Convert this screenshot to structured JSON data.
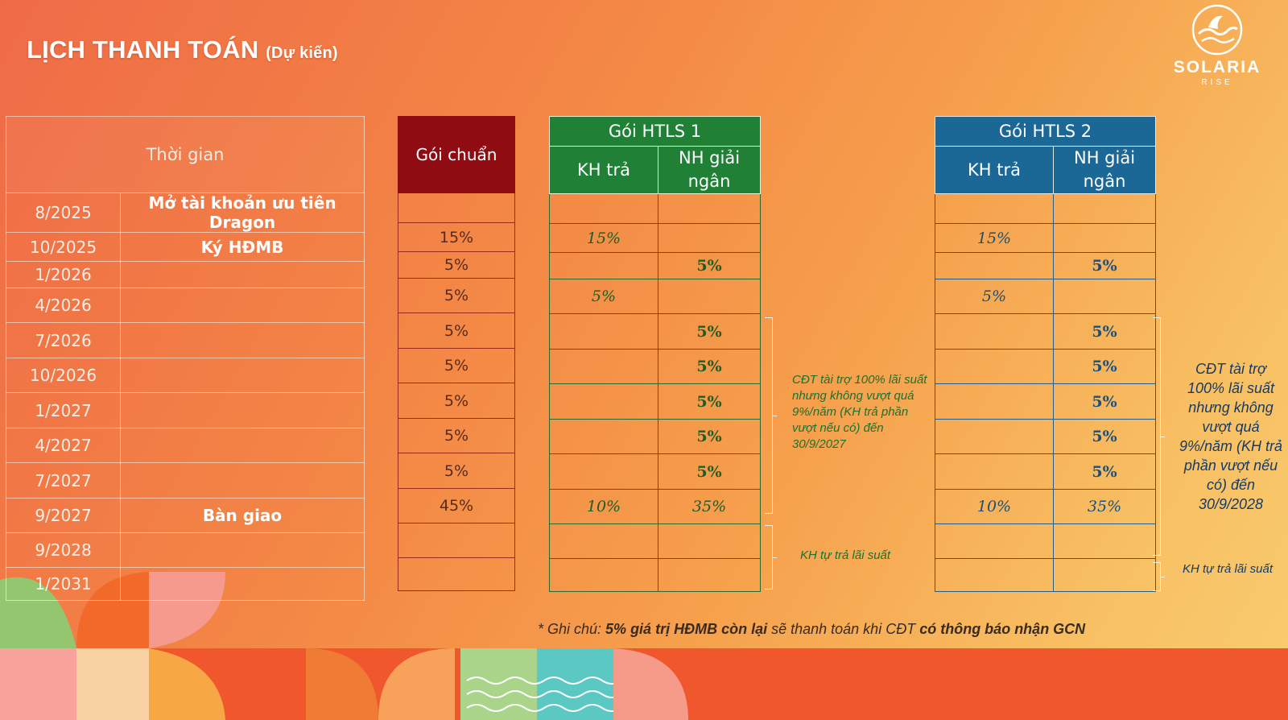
{
  "header": {
    "title": "LỊCH THANH TOÁN",
    "subtitle": "(Dự kiến)"
  },
  "logo": {
    "name": "SOLARIA",
    "tagline": "RISE"
  },
  "time_table": {
    "header": "Thời gian",
    "rows": [
      {
        "date": "8/2025",
        "event": "Mở tài khoản ưu tiên Dragon"
      },
      {
        "date": "10/2025",
        "event": "Ký HĐMB"
      },
      {
        "date": "1/2026",
        "event": ""
      },
      {
        "date": "4/2026",
        "event": ""
      },
      {
        "date": "7/2026",
        "event": ""
      },
      {
        "date": "10/2026",
        "event": ""
      },
      {
        "date": "1/2027",
        "event": ""
      },
      {
        "date": "4/2027",
        "event": ""
      },
      {
        "date": "7/2027",
        "event": ""
      },
      {
        "date": "9/2027",
        "event": "Bàn giao"
      },
      {
        "date": "9/2028",
        "event": ""
      },
      {
        "date": "1/2031",
        "event": ""
      }
    ]
  },
  "standard": {
    "header": "Gói chuẩn",
    "values": [
      "",
      "15%",
      "5%",
      "5%",
      "5%",
      "5%",
      "5%",
      "5%",
      "5%",
      "45%",
      "",
      ""
    ]
  },
  "htls1": {
    "title": "Gói HTLS 1",
    "col_customer": "KH trả",
    "col_bank": "NH giải ngân",
    "customer": [
      "",
      "15%",
      "",
      "5%",
      "",
      "",
      "",
      "",
      "",
      "10%",
      "",
      ""
    ],
    "bank": [
      "",
      "",
      "5%",
      "",
      "5%",
      "5%",
      "5%",
      "5%",
      "5%",
      "35%",
      "",
      ""
    ],
    "note_support": "CĐT tài trợ 100% lãi suất nhưng không vượt quá 9%/năm (KH trả phần vượt nếu có) đến 30/9/2027",
    "note_self": "KH tự trả lãi suất"
  },
  "htls2": {
    "title": "Gói HTLS 2",
    "col_customer": "KH trả",
    "col_bank": "NH giải ngân",
    "customer": [
      "",
      "15%",
      "",
      "5%",
      "",
      "",
      "",
      "",
      "",
      "10%",
      "",
      ""
    ],
    "bank": [
      "",
      "",
      "5%",
      "",
      "5%",
      "5%",
      "5%",
      "5%",
      "5%",
      "35%",
      "",
      ""
    ],
    "note_support": "CĐT tài trợ 100% lãi suất nhưng không vượt quá 9%/năm (KH trả phần vượt nếu có) đến 30/9/2028",
    "note_self": "KH tự trả lãi suất"
  },
  "footnote": {
    "prefix": "* Ghi chú: ",
    "bold1": "5% giá trị HĐMB còn lại",
    "mid": " sẽ thanh toán khi CĐT ",
    "bold2": "có thông báo nhận GCN"
  },
  "colors": {
    "standard_header": "#8f0d12",
    "htls1_header": "#208136",
    "htls2_header": "#1b6796"
  }
}
